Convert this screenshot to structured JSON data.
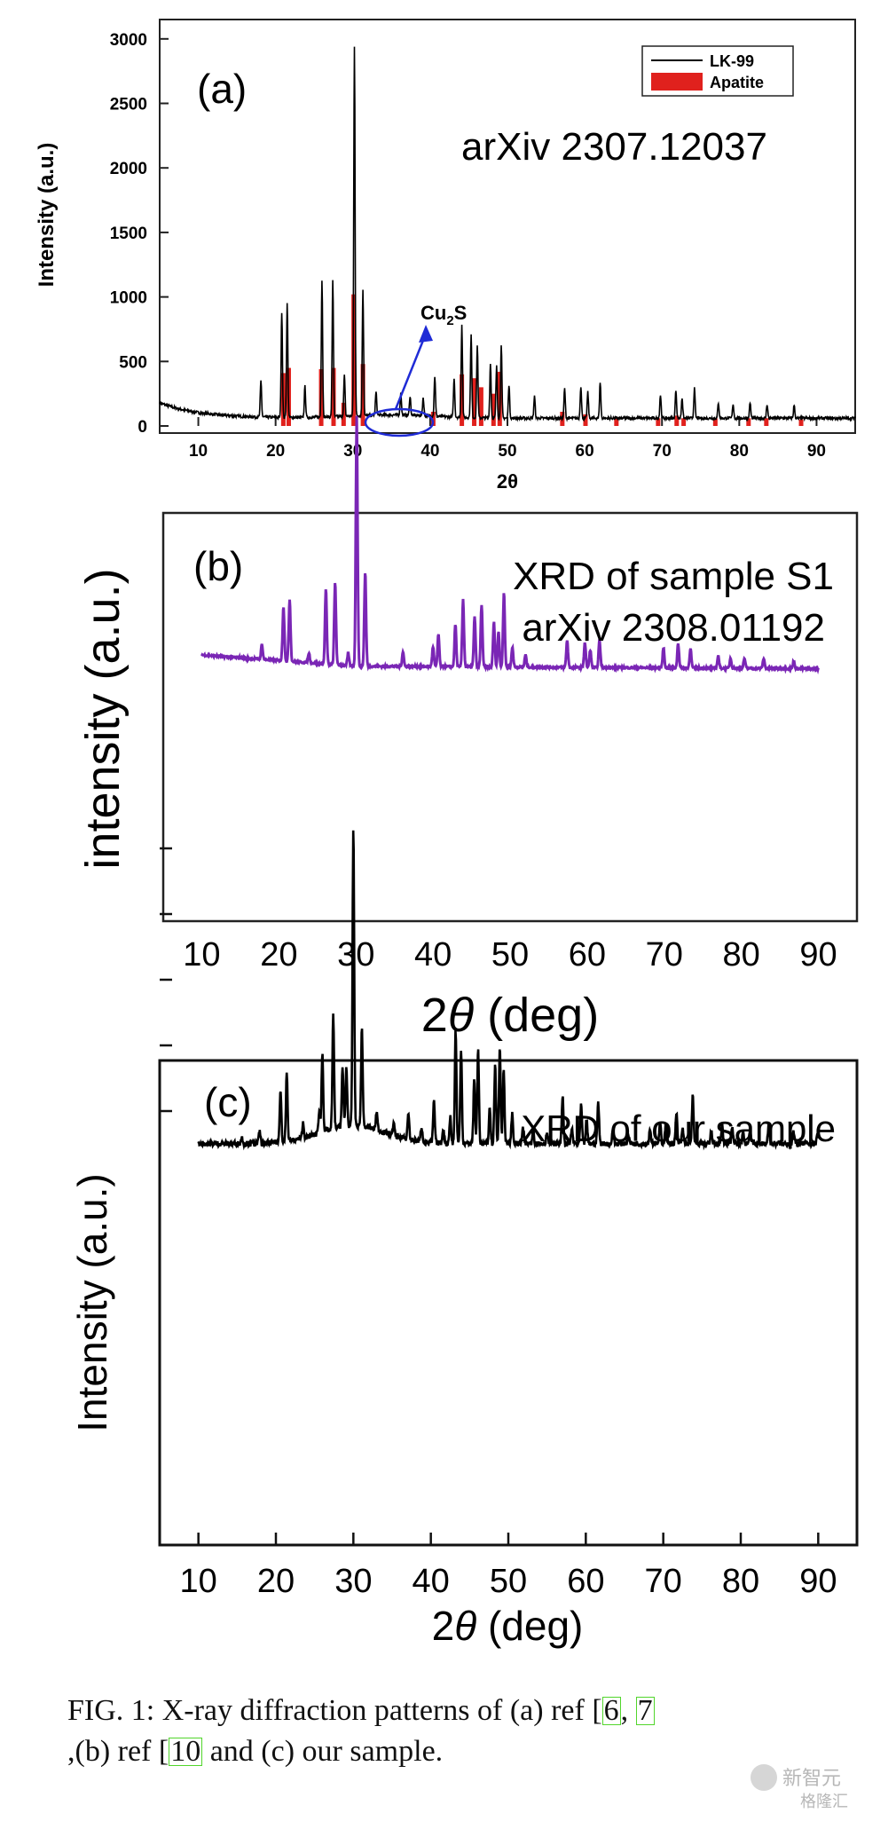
{
  "chart_data": [
    {
      "type": "line",
      "panel_label": "(a)",
      "annotation": "arXiv 2307.12037",
      "xlabel": "2θ",
      "ylabel": "Intensity (a.u.)",
      "xlim": [
        5,
        95
      ],
      "ylim": [
        0,
        3150
      ],
      "xticks": [
        10,
        20,
        30,
        40,
        50,
        60,
        70,
        80,
        90
      ],
      "yticks": [
        0,
        500,
        1000,
        1500,
        2000,
        2500,
        3000
      ],
      "legend": {
        "position": "top-right",
        "entries": [
          "LK-99",
          "Apatite"
        ]
      },
      "cu2s_label": "Cu",
      "cu2s_sub": "2",
      "cu2s_tail": "S",
      "colors": {
        "line": "#000000",
        "apatite": "#e0211d",
        "circle": "#1f2bd6"
      },
      "series": [
        {
          "name": "LK-99",
          "peaks": [
            [
              18.1,
              280
            ],
            [
              20.8,
              820
            ],
            [
              21.5,
              880
            ],
            [
              23.8,
              240
            ],
            [
              26.0,
              1060
            ],
            [
              27.4,
              1060
            ],
            [
              28.9,
              320
            ],
            [
              30.2,
              2860
            ],
            [
              31.3,
              980
            ],
            [
              33.0,
              180
            ],
            [
              36.2,
              170
            ],
            [
              37.4,
              150
            ],
            [
              39.1,
              140
            ],
            [
              40.6,
              310
            ],
            [
              43.1,
              300
            ],
            [
              44.1,
              720
            ],
            [
              45.3,
              640
            ],
            [
              46.1,
              560
            ],
            [
              47.8,
              420
            ],
            [
              48.6,
              400
            ],
            [
              49.2,
              560
            ],
            [
              50.2,
              260
            ],
            [
              53.5,
              170
            ],
            [
              57.4,
              230
            ],
            [
              59.5,
              250
            ],
            [
              60.4,
              200
            ],
            [
              62.0,
              280
            ],
            [
              69.8,
              180
            ],
            [
              71.8,
              220
            ],
            [
              72.6,
              160
            ],
            [
              74.2,
              230
            ],
            [
              77.3,
              120
            ],
            [
              79.2,
              110
            ],
            [
              81.4,
              120
            ],
            [
              83.6,
              110
            ],
            [
              87.1,
              100
            ]
          ]
        },
        {
          "name": "Apatite",
          "peaks": [
            [
              21.0,
              410
            ],
            [
              21.7,
              450
            ],
            [
              25.9,
              440
            ],
            [
              27.5,
              450
            ],
            [
              28.8,
              180
            ],
            [
              30.1,
              1020
            ],
            [
              31.3,
              480
            ],
            [
              40.4,
              110
            ],
            [
              44.1,
              400
            ],
            [
              45.7,
              370
            ],
            [
              46.6,
              300
            ],
            [
              48.2,
              250
            ],
            [
              49.0,
              420
            ],
            [
              57.1,
              110
            ],
            [
              60.1,
              90
            ],
            [
              64.1,
              60
            ],
            [
              69.5,
              60
            ],
            [
              71.9,
              80
            ],
            [
              72.8,
              60
            ],
            [
              76.9,
              60
            ],
            [
              81.2,
              60
            ],
            [
              83.5,
              60
            ],
            [
              88.0,
              50
            ]
          ]
        }
      ]
    },
    {
      "type": "line",
      "panel_label": "(b)",
      "annotation_line1": "XRD of sample S1",
      "annotation_line2": "arXiv 2308.01192",
      "xlabel_theta": "2",
      "xlabel_sym": "θ",
      "xlabel_unit": " (deg)",
      "ylabel": "intensity (a.u.)",
      "xlim": [
        5,
        95
      ],
      "xticks": [
        10,
        20,
        30,
        40,
        50,
        60,
        70,
        80,
        90
      ],
      "colors": {
        "line": "#7a26b5"
      },
      "series": [
        {
          "name": "",
          "baseline": [
            [
              10,
              0.085
            ],
            [
              30,
              0.04
            ],
            [
              90,
              0.03
            ]
          ],
          "peaks": [
            [
              17.8,
              0.06
            ],
            [
              20.6,
              0.22
            ],
            [
              21.4,
              0.25
            ],
            [
              23.9,
              0.04
            ],
            [
              26.1,
              0.3
            ],
            [
              27.3,
              0.33
            ],
            [
              29.0,
              0.05
            ],
            [
              30.1,
              1.0
            ],
            [
              31.2,
              0.38
            ],
            [
              36.1,
              0.06
            ],
            [
              40.0,
              0.08
            ],
            [
              40.7,
              0.13
            ],
            [
              42.9,
              0.17
            ],
            [
              43.9,
              0.27
            ],
            [
              45.4,
              0.2
            ],
            [
              46.3,
              0.25
            ],
            [
              47.9,
              0.18
            ],
            [
              48.5,
              0.14
            ],
            [
              49.2,
              0.3
            ],
            [
              50.3,
              0.08
            ],
            [
              52.0,
              0.05
            ],
            [
              57.4,
              0.11
            ],
            [
              59.7,
              0.1
            ],
            [
              60.4,
              0.07
            ],
            [
              61.6,
              0.11
            ],
            [
              69.9,
              0.08
            ],
            [
              71.8,
              0.1
            ],
            [
              73.4,
              0.08
            ],
            [
              77.0,
              0.05
            ],
            [
              78.6,
              0.04
            ],
            [
              80.4,
              0.04
            ],
            [
              82.9,
              0.04
            ],
            [
              86.8,
              0.03
            ]
          ]
        }
      ]
    },
    {
      "type": "line",
      "panel_label": "(c)",
      "annotation": "XRD of our sample",
      "xlabel_theta": "2",
      "xlabel_sym": "θ",
      "xlabel_unit": " (deg)",
      "ylabel": "Intensity (a.u.)",
      "xlim": [
        5,
        95
      ],
      "xticks": [
        10,
        20,
        30,
        40,
        50,
        60,
        70,
        80,
        90
      ],
      "colors": {
        "line": "#000000"
      },
      "series": [
        {
          "name": "",
          "hump": {
            "center": 30,
            "height": 0.06,
            "width": 6
          },
          "peaks": [
            [
              15.6,
              0.02
            ],
            [
              17.9,
              0.04
            ],
            [
              20.6,
              0.18
            ],
            [
              21.4,
              0.23
            ],
            [
              23.5,
              0.05
            ],
            [
              25.6,
              0.08
            ],
            [
              26.0,
              0.27
            ],
            [
              27.4,
              0.38
            ],
            [
              28.6,
              0.2
            ],
            [
              29.1,
              0.2
            ],
            [
              30.0,
              1.0
            ],
            [
              31.1,
              0.33
            ],
            [
              33.0,
              0.06
            ],
            [
              35.2,
              0.04
            ],
            [
              37.1,
              0.09
            ],
            [
              38.8,
              0.05
            ],
            [
              40.4,
              0.14
            ],
            [
              41.6,
              0.05
            ],
            [
              42.5,
              0.09
            ],
            [
              43.2,
              0.38
            ],
            [
              43.9,
              0.32
            ],
            [
              45.6,
              0.22
            ],
            [
              46.1,
              0.32
            ],
            [
              47.6,
              0.12
            ],
            [
              48.3,
              0.27
            ],
            [
              48.9,
              0.33
            ],
            [
              49.4,
              0.25
            ],
            [
              50.5,
              0.1
            ],
            [
              51.9,
              0.05
            ],
            [
              53.2,
              0.05
            ],
            [
              55.0,
              0.04
            ],
            [
              57.0,
              0.16
            ],
            [
              58.2,
              0.05
            ],
            [
              59.4,
              0.13
            ],
            [
              60.1,
              0.08
            ],
            [
              61.6,
              0.14
            ],
            [
              63.5,
              0.04
            ],
            [
              65.5,
              0.03
            ],
            [
              68.3,
              0.05
            ],
            [
              69.6,
              0.07
            ],
            [
              70.3,
              0.06
            ],
            [
              71.7,
              0.1
            ],
            [
              72.5,
              0.05
            ],
            [
              73.8,
              0.16
            ],
            [
              76.2,
              0.04
            ],
            [
              77.6,
              0.06
            ],
            [
              78.9,
              0.05
            ],
            [
              80.3,
              0.04
            ],
            [
              81.2,
              0.05
            ],
            [
              83.6,
              0.06
            ],
            [
              86.8,
              0.04
            ],
            [
              89.9,
              0.03
            ]
          ]
        }
      ]
    }
  ],
  "caption": {
    "prefix": "FIG. 1:  X-ray diffraction patterns of (a) ref [",
    "ref1": "6",
    "sep": ", ",
    "ref2": "7",
    "line2_pre": ",(b) ref [",
    "ref3": "10",
    "line2_post": " and (c) our sample."
  },
  "watermark": {
    "line1": "新智元",
    "line2": "格隆汇"
  }
}
